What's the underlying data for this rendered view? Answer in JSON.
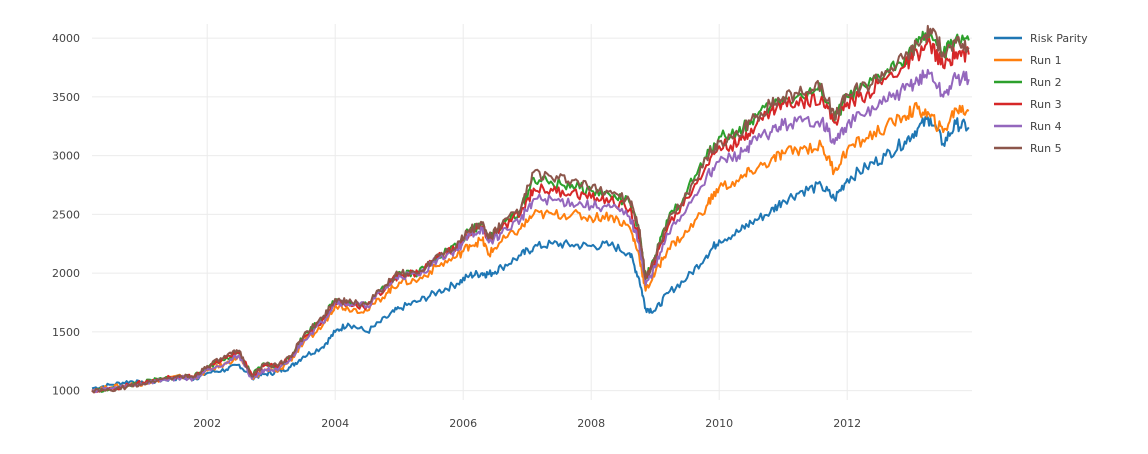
{
  "chart_data": {
    "type": "line",
    "title": "",
    "xlabel": "",
    "ylabel": "",
    "xlim": [
      2000.2,
      2013.95
    ],
    "ylim": [
      920,
      4120
    ],
    "grid": true,
    "legend_position": "top-right",
    "x_ticks": [
      2002,
      2004,
      2006,
      2008,
      2010,
      2012
    ],
    "x_tick_labels": [
      "2002",
      "2004",
      "2006",
      "2008",
      "2010",
      "2012"
    ],
    "y_ticks": [
      1000,
      1500,
      2000,
      2500,
      3000,
      3500,
      4000
    ],
    "y_tick_labels": [
      "1000",
      "1500",
      "2000",
      "2500",
      "3000",
      "3500",
      "4000"
    ],
    "x": [
      2000.2,
      2000.5,
      2000.8,
      2001.0,
      2001.3,
      2001.6,
      2001.8,
      2002.0,
      2002.3,
      2002.5,
      2002.7,
      2002.9,
      2003.1,
      2003.3,
      2003.5,
      2003.8,
      2004.0,
      2004.2,
      2004.5,
      2004.8,
      2005.0,
      2005.3,
      2005.6,
      2005.9,
      2006.1,
      2006.3,
      2006.4,
      2006.6,
      2006.9,
      2007.1,
      2007.4,
      2007.7,
      2008.0,
      2008.3,
      2008.6,
      2008.75,
      2008.85,
      2009.0,
      2009.2,
      2009.5,
      2009.8,
      2010.0,
      2010.3,
      2010.5,
      2010.8,
      2011.0,
      2011.3,
      2011.6,
      2011.8,
      2012.0,
      2012.3,
      2012.6,
      2012.9,
      2013.1,
      2013.3,
      2013.5,
      2013.7,
      2013.9
    ],
    "series": [
      {
        "name": "Risk Parity",
        "color": "#1f77b4",
        "values": [
          1020,
          1050,
          1080,
          1060,
          1090,
          1110,
          1100,
          1150,
          1180,
          1220,
          1110,
          1140,
          1160,
          1200,
          1290,
          1370,
          1500,
          1570,
          1500,
          1620,
          1700,
          1760,
          1840,
          1910,
          1980,
          2000,
          1990,
          2050,
          2150,
          2220,
          2250,
          2240,
          2230,
          2240,
          2170,
          1950,
          1700,
          1680,
          1830,
          1960,
          2150,
          2280,
          2350,
          2430,
          2520,
          2620,
          2700,
          2740,
          2630,
          2800,
          2900,
          3000,
          3120,
          3230,
          3320,
          3100,
          3270,
          3240
        ]
      },
      {
        "name": "Run 1",
        "color": "#ff7f0e",
        "values": [
          1010,
          1030,
          1050,
          1060,
          1100,
          1120,
          1110,
          1170,
          1230,
          1290,
          1100,
          1180,
          1160,
          1260,
          1400,
          1550,
          1730,
          1700,
          1680,
          1830,
          1920,
          1940,
          2060,
          2140,
          2240,
          2280,
          2160,
          2270,
          2380,
          2500,
          2500,
          2500,
          2470,
          2490,
          2390,
          2150,
          1850,
          2000,
          2210,
          2350,
          2570,
          2730,
          2780,
          2870,
          2950,
          3020,
          3060,
          3080,
          2870,
          3050,
          3150,
          3240,
          3340,
          3400,
          3330,
          3200,
          3400,
          3380
        ]
      },
      {
        "name": "Run 2",
        "color": "#2ca02c",
        "values": [
          1000,
          1010,
          1050,
          1070,
          1100,
          1120,
          1120,
          1200,
          1280,
          1320,
          1130,
          1230,
          1200,
          1290,
          1460,
          1620,
          1770,
          1740,
          1730,
          1900,
          2010,
          2000,
          2150,
          2230,
          2360,
          2420,
          2300,
          2400,
          2540,
          2810,
          2760,
          2750,
          2700,
          2660,
          2600,
          2350,
          1950,
          2150,
          2450,
          2700,
          2990,
          3160,
          3200,
          3300,
          3420,
          3480,
          3500,
          3560,
          3300,
          3500,
          3580,
          3700,
          3830,
          3950,
          4050,
          3850,
          4000,
          3980
        ]
      },
      {
        "name": "Run 3",
        "color": "#d62728",
        "values": [
          1000,
          1010,
          1050,
          1070,
          1100,
          1120,
          1120,
          1190,
          1280,
          1330,
          1120,
          1220,
          1200,
          1280,
          1450,
          1600,
          1760,
          1730,
          1720,
          1880,
          1990,
          2000,
          2140,
          2210,
          2340,
          2390,
          2280,
          2380,
          2510,
          2720,
          2700,
          2690,
          2640,
          2620,
          2540,
          2300,
          1950,
          2100,
          2400,
          2640,
          2920,
          3080,
          3100,
          3230,
          3380,
          3440,
          3460,
          3500,
          3280,
          3450,
          3520,
          3650,
          3760,
          3870,
          3950,
          3750,
          3880,
          3860
        ]
      },
      {
        "name": "Run 4",
        "color": "#9467bd",
        "values": [
          1000,
          1020,
          1040,
          1060,
          1090,
          1110,
          1100,
          1180,
          1240,
          1300,
          1100,
          1180,
          1170,
          1260,
          1430,
          1580,
          1760,
          1740,
          1720,
          1880,
          1980,
          1980,
          2120,
          2200,
          2320,
          2380,
          2260,
          2340,
          2460,
          2630,
          2620,
          2600,
          2570,
          2560,
          2480,
          2250,
          1900,
          2050,
          2330,
          2560,
          2820,
          2950,
          3000,
          3100,
          3200,
          3260,
          3290,
          3300,
          3100,
          3270,
          3360,
          3460,
          3560,
          3640,
          3700,
          3500,
          3660,
          3650
        ]
      },
      {
        "name": "Run 5",
        "color": "#8c564b",
        "values": [
          1000,
          1000,
          1040,
          1060,
          1100,
          1120,
          1120,
          1210,
          1290,
          1340,
          1120,
          1230,
          1210,
          1290,
          1460,
          1620,
          1780,
          1750,
          1740,
          1900,
          2000,
          2000,
          2160,
          2240,
          2370,
          2420,
          2300,
          2410,
          2550,
          2860,
          2800,
          2790,
          2720,
          2700,
          2620,
          2370,
          1950,
          2130,
          2430,
          2680,
          2980,
          3120,
          3170,
          3300,
          3430,
          3500,
          3530,
          3610,
          3320,
          3520,
          3600,
          3720,
          3840,
          3950,
          4080,
          3880,
          3960,
          3920
        ]
      }
    ]
  }
}
